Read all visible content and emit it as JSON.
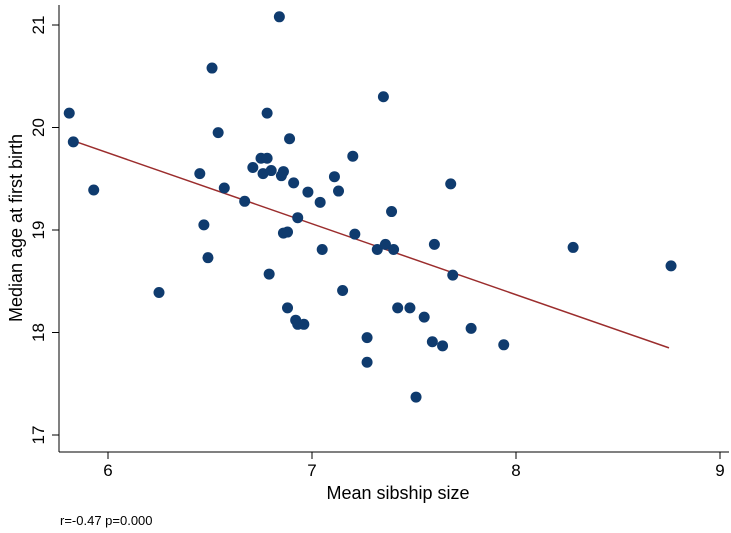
{
  "chart_data": {
    "type": "scatter",
    "title": "",
    "xlabel": "Mean sibship size",
    "ylabel": "Median age at first birth",
    "xlim": [
      5.75,
      9
    ],
    "ylim": [
      17,
      21.1
    ],
    "x_ticks": [
      "6",
      "7",
      "8",
      "9"
    ],
    "x_tick_values": [
      6,
      7,
      8,
      9
    ],
    "y_ticks": [
      "17",
      "18",
      "19",
      "20",
      "21"
    ],
    "y_tick_values": [
      17,
      18,
      19,
      20,
      21
    ],
    "grid": false,
    "annotation": "r=-0.47 p=0.000",
    "fit_line": {
      "x": [
        5.83,
        8.75
      ],
      "y": [
        19.87,
        17.85
      ]
    },
    "points": [
      {
        "x": 5.81,
        "y": 20.14
      },
      {
        "x": 5.83,
        "y": 19.86
      },
      {
        "x": 5.93,
        "y": 19.39
      },
      {
        "x": 6.25,
        "y": 18.39
      },
      {
        "x": 6.45,
        "y": 19.55
      },
      {
        "x": 6.47,
        "y": 19.05
      },
      {
        "x": 6.49,
        "y": 18.73
      },
      {
        "x": 6.51,
        "y": 20.58
      },
      {
        "x": 6.54,
        "y": 19.95
      },
      {
        "x": 6.57,
        "y": 19.41
      },
      {
        "x": 6.67,
        "y": 19.28
      },
      {
        "x": 6.71,
        "y": 19.61
      },
      {
        "x": 6.75,
        "y": 19.7
      },
      {
        "x": 6.76,
        "y": 19.55
      },
      {
        "x": 6.78,
        "y": 19.7
      },
      {
        "x": 6.78,
        "y": 20.14
      },
      {
        "x": 6.79,
        "y": 18.57
      },
      {
        "x": 6.8,
        "y": 19.58
      },
      {
        "x": 6.84,
        "y": 21.08
      },
      {
        "x": 6.85,
        "y": 19.53
      },
      {
        "x": 6.86,
        "y": 19.57
      },
      {
        "x": 6.86,
        "y": 18.97
      },
      {
        "x": 6.88,
        "y": 18.98
      },
      {
        "x": 6.88,
        "y": 18.24
      },
      {
        "x": 6.89,
        "y": 19.89
      },
      {
        "x": 6.91,
        "y": 19.46
      },
      {
        "x": 6.92,
        "y": 18.12
      },
      {
        "x": 6.93,
        "y": 18.08
      },
      {
        "x": 6.93,
        "y": 19.12
      },
      {
        "x": 6.96,
        "y": 18.08
      },
      {
        "x": 6.98,
        "y": 19.37
      },
      {
        "x": 7.04,
        "y": 19.27
      },
      {
        "x": 7.05,
        "y": 18.81
      },
      {
        "x": 7.11,
        "y": 19.52
      },
      {
        "x": 7.13,
        "y": 19.38
      },
      {
        "x": 7.15,
        "y": 18.41
      },
      {
        "x": 7.2,
        "y": 19.72
      },
      {
        "x": 7.21,
        "y": 18.96
      },
      {
        "x": 7.27,
        "y": 17.95
      },
      {
        "x": 7.27,
        "y": 17.71
      },
      {
        "x": 7.32,
        "y": 18.81
      },
      {
        "x": 7.35,
        "y": 20.3
      },
      {
        "x": 7.36,
        "y": 18.86
      },
      {
        "x": 7.39,
        "y": 19.18
      },
      {
        "x": 7.4,
        "y": 18.81
      },
      {
        "x": 7.42,
        "y": 18.24
      },
      {
        "x": 7.48,
        "y": 18.24
      },
      {
        "x": 7.51,
        "y": 17.37
      },
      {
        "x": 7.55,
        "y": 18.15
      },
      {
        "x": 7.59,
        "y": 17.91
      },
      {
        "x": 7.6,
        "y": 18.86
      },
      {
        "x": 7.64,
        "y": 17.87
      },
      {
        "x": 7.68,
        "y": 19.45
      },
      {
        "x": 7.69,
        "y": 18.56
      },
      {
        "x": 7.78,
        "y": 18.04
      },
      {
        "x": 7.94,
        "y": 17.88
      },
      {
        "x": 8.28,
        "y": 18.83
      },
      {
        "x": 8.76,
        "y": 18.65
      }
    ]
  }
}
